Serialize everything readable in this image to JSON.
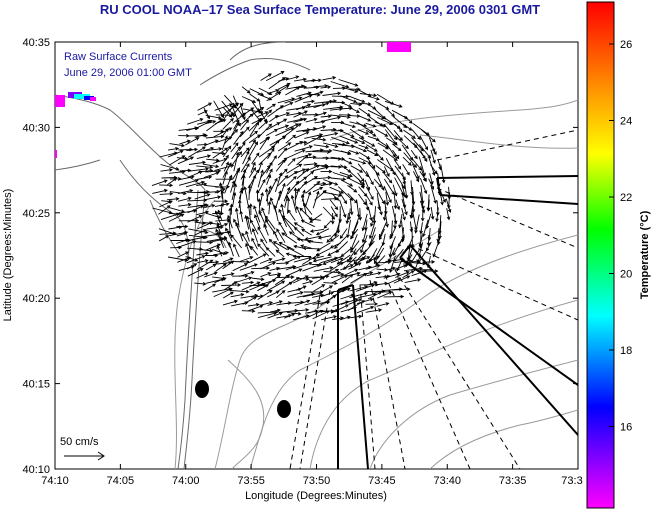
{
  "title": "RU COOL   NOAA–17  Sea Surface Temperature:  June 29, 2006 0301 GMT",
  "annotation": {
    "line1": "Raw Surface Currents",
    "line2": "June 29, 2006 01:00 GMT"
  },
  "scale_label": "50 cm/s",
  "axes": {
    "xlabel": "Longitude (Degrees:Minutes)",
    "ylabel": "Latitude (Degrees:Minutes)",
    "x_ticks": [
      "74:10",
      "74:05",
      "74:00",
      "73:55",
      "73:50",
      "73:45",
      "73:40",
      "73:35",
      "73:3"
    ],
    "y_ticks": [
      "40:35",
      "40:30",
      "40:25",
      "40:20",
      "40:15",
      "40:10"
    ]
  },
  "colorbar": {
    "label": "Temperature (°C)",
    "ticks": [
      "26",
      "24",
      "22",
      "20",
      "18",
      "16"
    ],
    "colors": [
      "#ff0000",
      "#ff8000",
      "#ffff00",
      "#00ff00",
      "#00ffff",
      "#0000ff",
      "#8000ff",
      "#ff00ff"
    ]
  },
  "colors": {
    "title": "#1a1aa0",
    "vectors": "#000000",
    "coast": "#888888"
  }
}
